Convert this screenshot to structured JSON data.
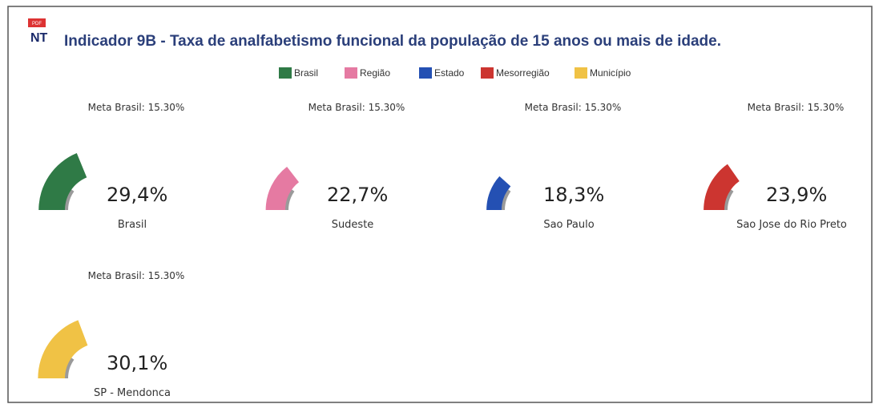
{
  "header": {
    "badge": "PDF",
    "logo": "NT",
    "title": "Indicador 9B - Taxa de analfabetismo funcional da população de 15 anos ou mais de idade."
  },
  "legend": [
    {
      "label": "Brasil",
      "color": "#2f7a46"
    },
    {
      "label": "Região",
      "color": "#e57aa2"
    },
    {
      "label": "Estado",
      "color": "#2450b3"
    },
    {
      "label": "Mesorregião",
      "color": "#cc3530"
    },
    {
      "label": "Município",
      "color": "#f0c245"
    }
  ],
  "panels": [
    {
      "meta": "Meta Brasil: 15.30%",
      "value": 29.4,
      "value_label": "29,4%",
      "name": "Brasil",
      "color": "#2f7a46"
    },
    {
      "meta": "Meta Brasil: 15.30%",
      "value": 22.7,
      "value_label": "22,7%",
      "name": "Sudeste",
      "color": "#e57aa2"
    },
    {
      "meta": "Meta Brasil: 15.30%",
      "value": 18.3,
      "value_label": "18,3%",
      "name": "Sao Paulo",
      "color": "#2450b3"
    },
    {
      "meta": "Meta Brasil: 15.30%",
      "value": 23.9,
      "value_label": "23,9%",
      "name": "Sao Jose do Rio Preto",
      "color": "#cc3530"
    },
    {
      "meta": "Meta Brasil: 15.30%",
      "value": 30.1,
      "value_label": "30,1%",
      "name": "SP - Mendonca",
      "color": "#f0c245"
    }
  ]
}
